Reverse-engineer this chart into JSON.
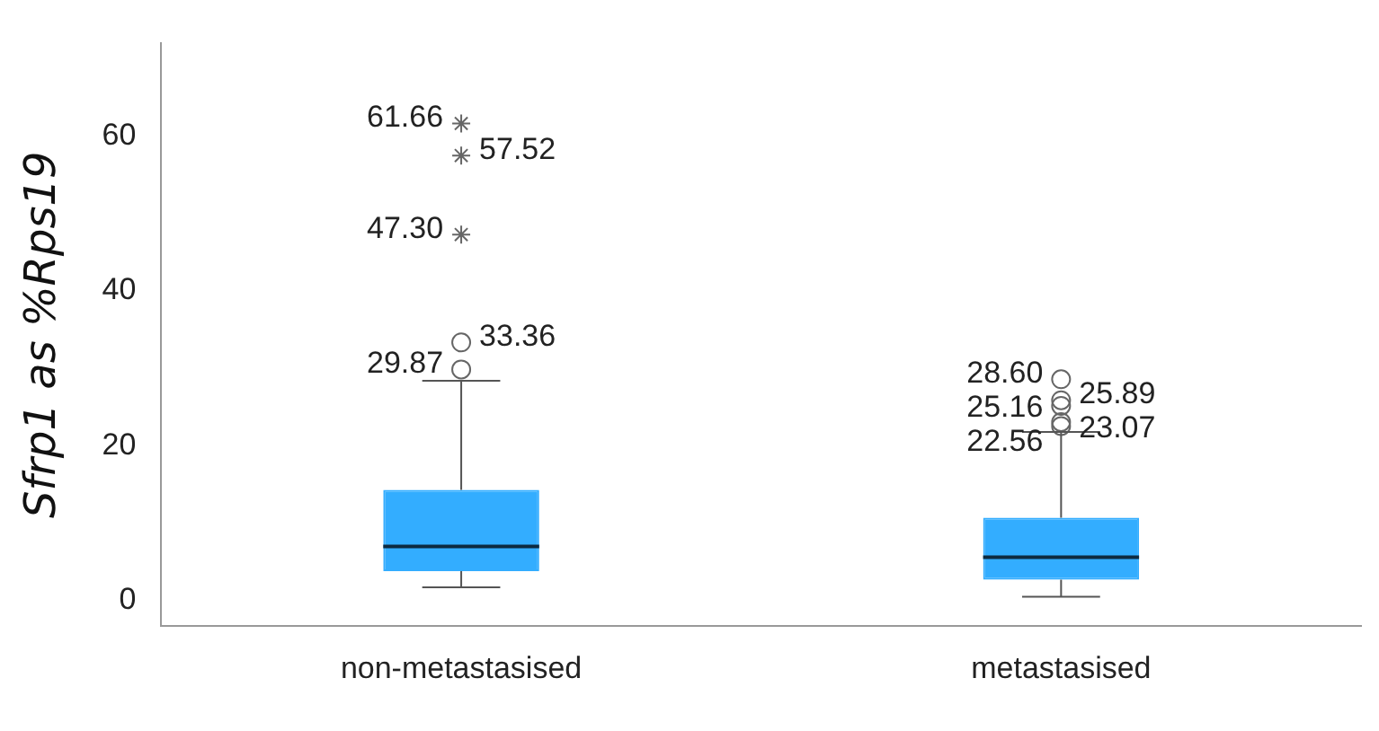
{
  "chart_data": {
    "type": "box",
    "ylabel": "Sfrp1 as %Rps19",
    "categories": [
      "non-metastasised",
      "metastasised"
    ],
    "series": [
      {
        "color": "#33adff",
        "boxes": [
          {
            "low": 1.7,
            "q1": 3.8,
            "median": 7.0,
            "q3": 14.3,
            "high": 28.4
          },
          {
            "low": 0.5,
            "q1": 2.7,
            "median": 5.6,
            "q3": 10.7,
            "high": 21.8
          }
        ]
      },
      {
        "type": "scatter",
        "marker": "cross",
        "color": "#666666",
        "x": [
          "non-metastasised",
          "non-metastasised",
          "non-metastasised"
        ],
        "values": [
          61.66,
          57.52,
          47.3
        ],
        "value_labels": [
          "61.66",
          "57.52",
          "47.30"
        ]
      },
      {
        "type": "scatter",
        "marker": "circle",
        "color": "#666666",
        "x": [
          "non-metastasised",
          "non-metastasised",
          "metastasised",
          "metastasised",
          "metastasised",
          "metastasised",
          "metastasised"
        ],
        "values": [
          33.36,
          29.87,
          28.6,
          25.89,
          25.16,
          23.07,
          22.56
        ],
        "value_labels": [
          "33.36",
          "29.87",
          "28.60",
          "25.89",
          "25.16",
          "23.07",
          "22.56"
        ]
      }
    ],
    "ylim": [
      -3.3,
      72
    ],
    "yticks": [
      0,
      20,
      40,
      60
    ],
    "grid": false,
    "legend": false
  }
}
